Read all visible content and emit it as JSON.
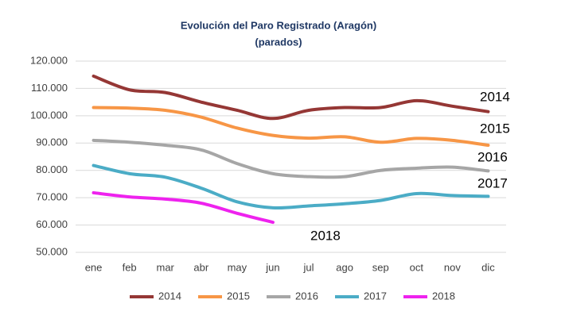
{
  "chart_data": {
    "type": "line",
    "title": "Evolución del Paro Registrado (Aragón)",
    "subtitle": "(parados)",
    "categories": [
      "ene",
      "feb",
      "mar",
      "abr",
      "may",
      "jun",
      "jul",
      "ago",
      "sep",
      "oct",
      "nov",
      "dic"
    ],
    "series": [
      {
        "name": "2014",
        "color": "#953735",
        "values": [
          114500,
          109500,
          108500,
          105000,
          102000,
          99000,
          102000,
          103000,
          103000,
          105500,
          103500,
          101500
        ]
      },
      {
        "name": "2015",
        "color": "#f79646",
        "values": [
          103000,
          102800,
          102000,
          99500,
          95500,
          92800,
          91800,
          92300,
          90300,
          91700,
          91000,
          89200
        ]
      },
      {
        "name": "2016",
        "color": "#a6a6a6",
        "values": [
          91000,
          90300,
          89200,
          87500,
          82500,
          78800,
          77700,
          77700,
          80000,
          80800,
          81200,
          79800
        ]
      },
      {
        "name": "2017",
        "color": "#4bacc6",
        "values": [
          81800,
          78800,
          77500,
          73500,
          68500,
          66300,
          67000,
          67800,
          69000,
          71500,
          70800,
          70500
        ]
      },
      {
        "name": "2018",
        "color": "#ee22ee",
        "values": [
          71800,
          70300,
          69500,
          68000,
          64300,
          61000,
          null,
          null,
          null,
          null,
          null,
          null
        ]
      }
    ],
    "ylim": [
      50000,
      120000
    ],
    "yticks": [
      {
        "value": 50000,
        "label": "50.000"
      },
      {
        "value": 60000,
        "label": "60.000"
      },
      {
        "value": 70000,
        "label": "70.000"
      },
      {
        "value": 80000,
        "label": "80.000"
      },
      {
        "value": 90000,
        "label": "90.000"
      },
      {
        "value": 100000,
        "label": "100.000"
      },
      {
        "value": 110000,
        "label": "110.000"
      },
      {
        "value": 120000,
        "label": "120.000"
      }
    ],
    "grid": true
  }
}
